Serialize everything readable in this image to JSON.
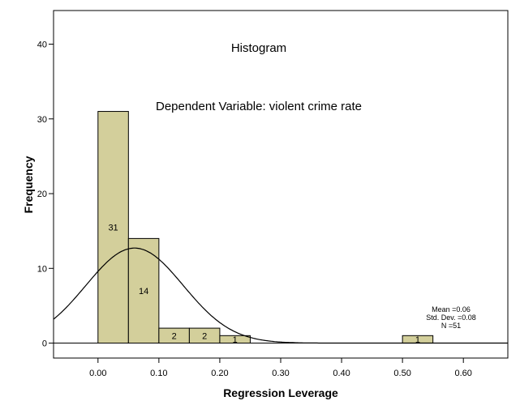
{
  "chart_data": {
    "type": "bar",
    "title": "Histogram",
    "subtitle": "Dependent Variable: violent crime rate",
    "xlabel": "Regression Leverage",
    "ylabel": "Frequency",
    "bin_width": 0.05,
    "bins": [
      {
        "start": 0.0,
        "end": 0.05,
        "count": 31
      },
      {
        "start": 0.05,
        "end": 0.1,
        "count": 14
      },
      {
        "start": 0.1,
        "end": 0.15,
        "count": 2
      },
      {
        "start": 0.15,
        "end": 0.2,
        "count": 2
      },
      {
        "start": 0.2,
        "end": 0.25,
        "count": 1
      },
      {
        "start": 0.5,
        "end": 0.55,
        "count": 1
      }
    ],
    "xlim": [
      -0.073,
      0.673
    ],
    "ylim": [
      -2,
      44.5
    ],
    "xticks": [
      "0.00",
      "0.10",
      "0.20",
      "0.30",
      "0.40",
      "0.50",
      "0.60"
    ],
    "yticks": [
      "0",
      "10",
      "20",
      "30",
      "40"
    ],
    "normal_curve": {
      "mean": 0.06,
      "sd": 0.08,
      "n": 51
    },
    "stats": {
      "mean": "Mean =0.06",
      "sd": "Std. Dev. =0.08",
      "n": "N =51"
    },
    "bar_color": "#d3cf9b",
    "grid": false
  }
}
